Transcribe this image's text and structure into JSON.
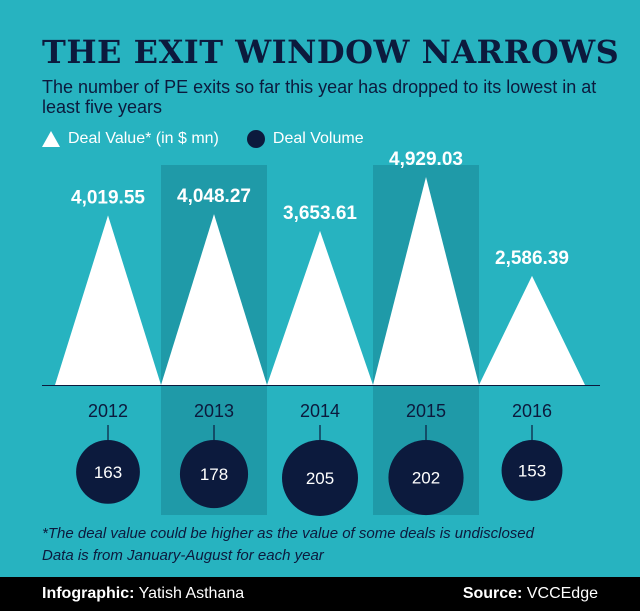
{
  "header": {
    "title": "THE EXIT WINDOW NARROWS",
    "subtitle": "The number of PE exits so far this year has dropped to its lowest in at least five years"
  },
  "legend": {
    "value_label": "Deal Value* (in $ mn)",
    "volume_label": "Deal Volume"
  },
  "chart_data": {
    "type": "bar",
    "categories": [
      "2012",
      "2013",
      "2014",
      "2015",
      "2016"
    ],
    "series": [
      {
        "name": "Deal Value* (in $ mn)",
        "values": [
          4019.55,
          4048.27,
          3653.61,
          4929.03,
          2586.39
        ],
        "labels": [
          "4,019.55",
          "4,048.27",
          "3,653.61",
          "4,929.03",
          "2,586.39"
        ]
      },
      {
        "name": "Deal Volume",
        "values": [
          163,
          178,
          205,
          202,
          153
        ]
      }
    ],
    "value_max": 4929.03,
    "volume_max": 205,
    "colors": {
      "background": "#27b3c0",
      "band": "#1f9aa8",
      "triangle": "#ffffff",
      "circle": "#0c1a3d"
    }
  },
  "footnotes": {
    "line1": "*The deal value could be higher as the value of some deals is undisclosed",
    "line2": "Data is from January-August for each year"
  },
  "footer": {
    "credit_label": "Infographic:",
    "credit_name": "Yatish Asthana",
    "source_label": "Source:",
    "source_name": "VCCEdge"
  }
}
